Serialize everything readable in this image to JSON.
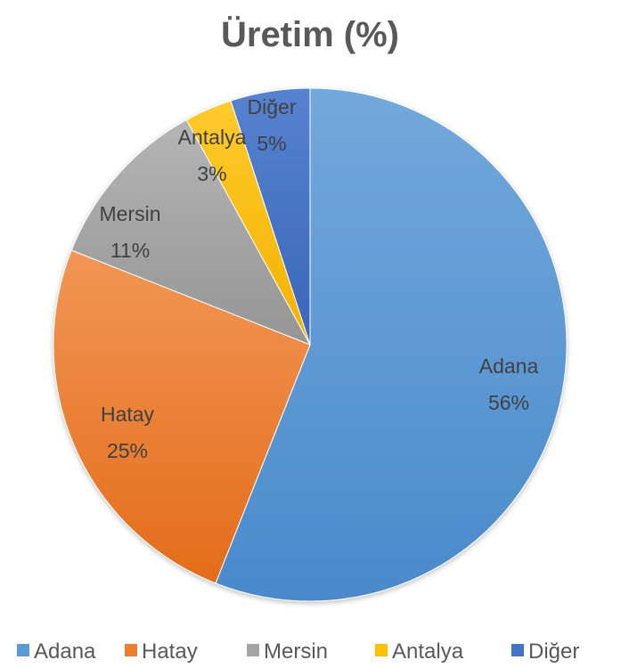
{
  "chart_data": {
    "type": "pie",
    "title": "Üretim (%)",
    "categories": [
      "Adana",
      "Hatay",
      "Mersin",
      "Antalya",
      "Diğer"
    ],
    "values": [
      56,
      25,
      11,
      3,
      5
    ],
    "labels": [
      "56%",
      "25%",
      "11%",
      "3%",
      "5%"
    ],
    "colors": [
      "#5b9bd5",
      "#ed7d31",
      "#a5a5a5",
      "#ffc000",
      "#4472c4"
    ],
    "legend_position": "bottom"
  }
}
